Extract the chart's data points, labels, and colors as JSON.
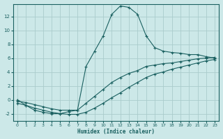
{
  "xlabel": "Humidex (Indice chaleur)",
  "bg_color": "#cce8e8",
  "grid_color": "#aacccc",
  "line_color": "#1a6060",
  "xlim": [
    -0.5,
    23.5
  ],
  "ylim": [
    -3.0,
    13.8
  ],
  "xticks": [
    0,
    1,
    2,
    3,
    4,
    5,
    6,
    7,
    8,
    9,
    10,
    11,
    12,
    13,
    14,
    15,
    16,
    17,
    18,
    19,
    20,
    21,
    22,
    23
  ],
  "yticks": [
    -2,
    0,
    2,
    4,
    6,
    8,
    10,
    12
  ],
  "line1_x": [
    0,
    1,
    2,
    3,
    4,
    5,
    6,
    7,
    8,
    9,
    10,
    11,
    12,
    13,
    14,
    15,
    16,
    17,
    18,
    19,
    20,
    21,
    22,
    23
  ],
  "line1_y": [
    0,
    -0.8,
    -1.5,
    -1.8,
    -2,
    -2,
    -1.7,
    -1.5,
    4.8,
    7,
    9.2,
    12.3,
    13.5,
    13.3,
    12.3,
    9.2,
    7.5,
    7,
    6.8,
    6.7,
    6.5,
    6.5,
    6.2,
    6.0
  ],
  "line2_x": [
    0,
    1,
    2,
    3,
    4,
    5,
    6,
    7,
    8,
    9,
    10,
    11,
    12,
    13,
    14,
    15,
    16,
    17,
    18,
    19,
    20,
    21,
    22,
    23
  ],
  "line2_y": [
    -0.2,
    -0.4,
    -0.7,
    -1.0,
    -1.3,
    -1.5,
    -1.5,
    -1.5,
    -0.5,
    0.5,
    1.5,
    2.5,
    3.2,
    3.8,
    4.2,
    4.8,
    5.0,
    5.2,
    5.3,
    5.5,
    5.7,
    5.9,
    6.0,
    6.1
  ],
  "line3_x": [
    0,
    1,
    2,
    3,
    4,
    5,
    6,
    7,
    8,
    9,
    10,
    11,
    12,
    13,
    14,
    15,
    16,
    17,
    18,
    19,
    20,
    21,
    22,
    23
  ],
  "line3_y": [
    -0.5,
    -0.8,
    -1.2,
    -1.5,
    -1.8,
    -2.0,
    -2.1,
    -2.1,
    -1.8,
    -1.2,
    -0.5,
    0.3,
    1.0,
    1.8,
    2.5,
    3.2,
    3.7,
    4.0,
    4.4,
    4.7,
    5.0,
    5.3,
    5.6,
    5.8
  ]
}
